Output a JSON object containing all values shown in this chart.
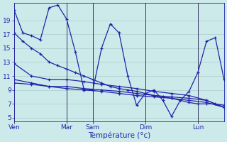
{
  "xlabel": "Température (°c)",
  "bg_color": "#cceaea",
  "grid_color": "#aacccc",
  "line_color": "#2222aa",
  "vline_color": "#333366",
  "ylim": [
    4.5,
    21.5
  ],
  "yticks": [
    5,
    7,
    9,
    11,
    13,
    15,
    17,
    19
  ],
  "day_labels": [
    "Ven",
    "Mar",
    "Sam",
    "Dim",
    "Lun"
  ],
  "day_positions": [
    0,
    12,
    18,
    30,
    42
  ],
  "xlim": [
    0,
    48
  ],
  "series": [
    {
      "x": [
        0,
        2,
        4,
        6,
        8,
        10,
        12,
        14,
        16,
        18,
        20,
        22,
        24,
        26,
        28,
        30,
        32,
        34,
        36,
        38,
        40,
        42,
        44,
        46,
        48
      ],
      "y": [
        20.5,
        17.2,
        16.8,
        16.2,
        20.8,
        21.2,
        19.2,
        14.5,
        9.0,
        9.0,
        15.0,
        18.5,
        17.2,
        11.0,
        6.8,
        8.5,
        9.0,
        7.5,
        5.2,
        7.5,
        8.8,
        11.5,
        16.0,
        16.5,
        10.5
      ]
    },
    {
      "x": [
        0,
        2,
        4,
        6,
        8,
        10,
        12,
        14,
        16,
        18,
        20,
        22,
        24,
        26,
        28,
        30,
        32,
        34,
        36,
        38,
        40,
        42,
        44,
        46,
        48
      ],
      "y": [
        17.2,
        16.0,
        15.0,
        14.2,
        13.0,
        12.5,
        12.0,
        11.5,
        11.0,
        10.5,
        10.0,
        9.5,
        9.2,
        9.0,
        8.8,
        8.5,
        8.2,
        8.0,
        7.8,
        7.5,
        7.2,
        7.0,
        7.0,
        7.0,
        6.8
      ]
    },
    {
      "x": [
        0,
        4,
        8,
        12,
        16,
        20,
        24,
        28,
        32,
        36,
        40,
        44,
        48
      ],
      "y": [
        12.8,
        11.0,
        10.5,
        10.5,
        10.2,
        9.8,
        9.5,
        9.2,
        8.8,
        8.5,
        8.2,
        7.5,
        6.5
      ]
    },
    {
      "x": [
        0,
        4,
        8,
        12,
        16,
        20,
        24,
        28,
        32,
        36,
        40,
        44,
        48
      ],
      "y": [
        10.5,
        10.0,
        9.5,
        9.5,
        9.2,
        9.0,
        8.8,
        8.5,
        8.2,
        8.0,
        7.8,
        7.5,
        6.5
      ]
    },
    {
      "x": [
        0,
        4,
        8,
        12,
        16,
        20,
        24,
        28,
        32,
        36,
        40,
        44,
        48
      ],
      "y": [
        10.0,
        9.8,
        9.5,
        9.2,
        9.0,
        8.8,
        8.5,
        8.2,
        8.0,
        7.8,
        7.5,
        7.2,
        6.5
      ]
    }
  ]
}
